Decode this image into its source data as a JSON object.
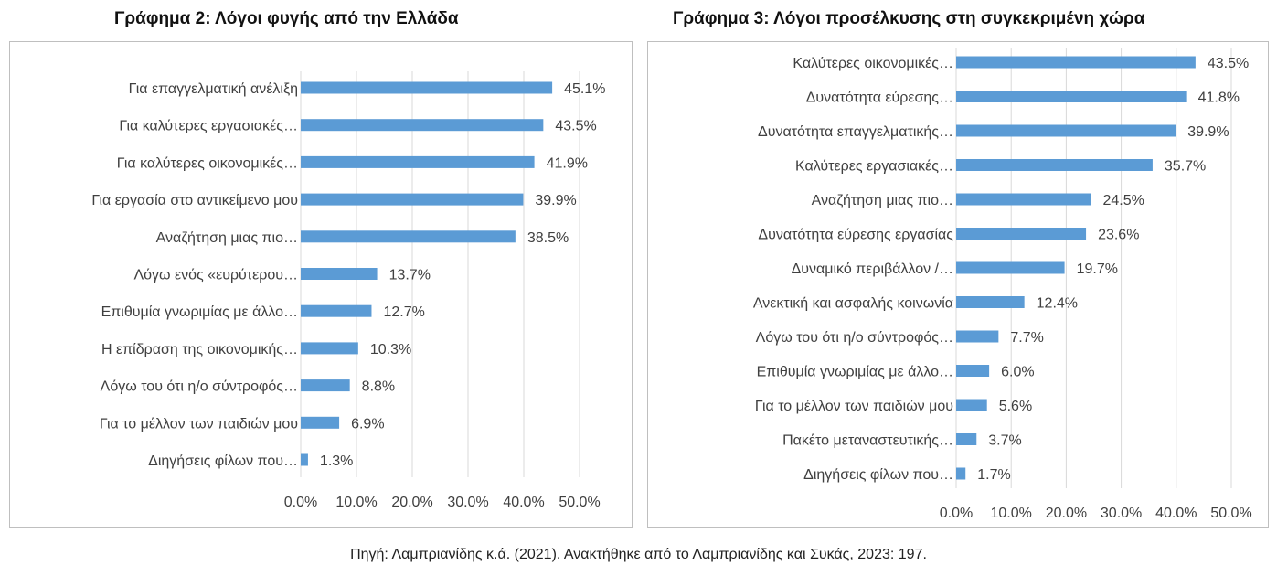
{
  "chart_data": [
    {
      "type": "bar",
      "orientation": "horizontal",
      "title": "Γράφημα 2: Λόγοι φυγής από την Ελλάδα",
      "categories": [
        "Για επαγγελματική ανέλιξη",
        "Για καλύτερες εργασιακές…",
        "Για καλύτερες οικονομικές…",
        "Για εργασία στο αντικείμενο μου",
        "Αναζήτηση μιας πιο…",
        "Λόγω ενός «ευρύτερου…",
        "Επιθυμία γνωριμίας με άλλο…",
        "Η επίδραση της οικονομικής…",
        "Λόγω του ότι η/ο σύντροφός…",
        "Για το μέλλον των παιδιών μου",
        "Διηγήσεις φίλων που…"
      ],
      "values": [
        45.1,
        43.5,
        41.9,
        39.9,
        38.5,
        13.7,
        12.7,
        10.3,
        8.8,
        6.9,
        1.3
      ],
      "value_labels": [
        "45.1%",
        "43.5%",
        "41.9%",
        "39.9%",
        "38.5%",
        "13.7%",
        "12.7%",
        "10.3%",
        "8.8%",
        "6.9%",
        "1.3%"
      ],
      "xlim": [
        0,
        50
      ],
      "xticks": [
        "0.0%",
        "10.0%",
        "20.0%",
        "30.0%",
        "40.0%",
        "50.0%"
      ],
      "grid": true,
      "bar_color": "#5b9bd5"
    },
    {
      "type": "bar",
      "orientation": "horizontal",
      "title": "Γράφημα 3: Λόγοι προσέλκυσης στη συγκεκριμένη χώρα",
      "categories": [
        "Καλύτερες οικονομικές…",
        "Δυνατότητα εύρεσης…",
        "Δυνατότητα  επαγγελματικής…",
        "Καλύτερες εργασιακές…",
        "Αναζήτηση μιας πιο…",
        "Δυνατότητα εύρεσης εργασίας",
        "Δυναμικό  περιβάλλον /…",
        "Ανεκτική και ασφαλής κοινωνία",
        "Λόγω του ότι η/ο σύντροφός…",
        "Επιθυμία γνωριμίας με άλλο…",
        "Για το μέλλον των παιδιών μου",
        "Πακέτο μεταναστευτικής…",
        "Διηγήσεις φίλων που…"
      ],
      "values": [
        43.5,
        41.8,
        39.9,
        35.7,
        24.5,
        23.6,
        19.7,
        12.4,
        7.7,
        6.0,
        5.6,
        3.7,
        1.7
      ],
      "value_labels": [
        "43.5%",
        "41.8%",
        "39.9%",
        "35.7%",
        "24.5%",
        "23.6%",
        "19.7%",
        "12.4%",
        "7.7%",
        "6.0%",
        "5.6%",
        "3.7%",
        "1.7%"
      ],
      "xlim": [
        0,
        50
      ],
      "xticks": [
        "0.0%",
        "10.0%",
        "20.0%",
        "30.0%",
        "40.0%",
        "50.0%"
      ],
      "grid": true,
      "bar_color": "#5b9bd5"
    }
  ],
  "source_note": "Πηγή: Λαμπριανίδης κ.ά. (2021). Ανακτήθηκε από το Λαμπριανίδης και Συκάς, 2023: 197."
}
